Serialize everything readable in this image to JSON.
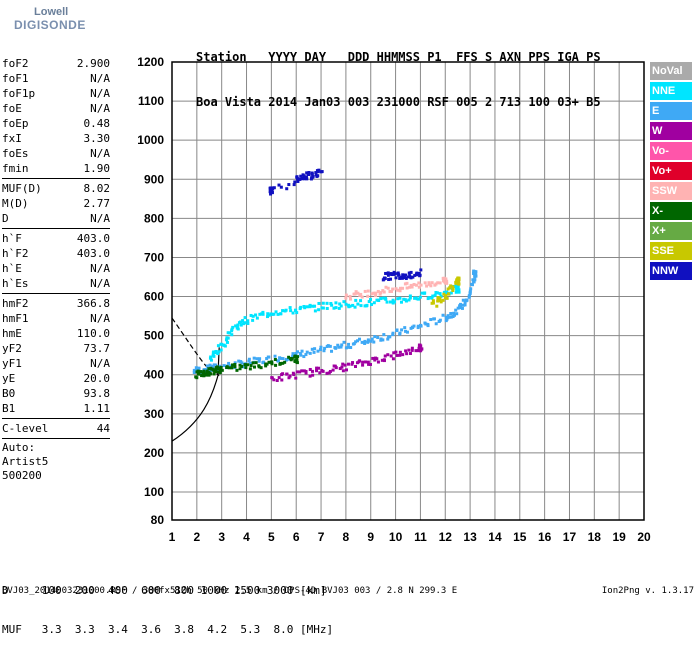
{
  "logo": {
    "line1": "Lowell",
    "line2": "DIGISONDE"
  },
  "header": {
    "row1": "Station   YYYY DAY   DDD HHMMSS P1  FFS S AXN PPS IGA PS",
    "row2": "Boa Vista 2014 Jan03 003 231000 RSF 005 2 713 100 03+ B5"
  },
  "params": {
    "group1": [
      {
        "name": "foF2",
        "value": "2.900"
      },
      {
        "name": "foF1",
        "value": "N/A"
      },
      {
        "name": "foF1p",
        "value": "N/A"
      },
      {
        "name": "foE",
        "value": "N/A"
      },
      {
        "name": "foEp",
        "value": "0.48"
      },
      {
        "name": "fxI",
        "value": "3.30"
      },
      {
        "name": "foEs",
        "value": "N/A"
      },
      {
        "name": "fmin",
        "value": "1.90"
      }
    ],
    "group2": [
      {
        "name": "MUF(D)",
        "value": "8.02"
      },
      {
        "name": "M(D)",
        "value": "2.77"
      },
      {
        "name": "D",
        "value": "N/A"
      }
    ],
    "group3": [
      {
        "name": "h`F",
        "value": "403.0"
      },
      {
        "name": "h`F2",
        "value": "403.0"
      },
      {
        "name": "h`E",
        "value": "N/A"
      },
      {
        "name": "h`Es",
        "value": "N/A"
      }
    ],
    "group4": [
      {
        "name": "hmF2",
        "value": "366.8"
      },
      {
        "name": "hmF1",
        "value": "N/A"
      },
      {
        "name": "hmE",
        "value": "110.0"
      },
      {
        "name": "yF2",
        "value": "73.7"
      },
      {
        "name": "yF1",
        "value": "N/A"
      },
      {
        "name": "yE",
        "value": "20.0"
      },
      {
        "name": "B0",
        "value": "93.8"
      },
      {
        "name": "B1",
        "value": "1.11"
      }
    ],
    "group5": [
      {
        "name": "C-level",
        "value": "44"
      }
    ],
    "auto": [
      "Auto:",
      "Artist5",
      "500200"
    ]
  },
  "legend": [
    {
      "label": "NoVal",
      "color": "#aaaaaa"
    },
    {
      "label": "NNE",
      "color": "#00e5ff"
    },
    {
      "label": "E",
      "color": "#3fa9f5"
    },
    {
      "label": "W",
      "color": "#a000a0"
    },
    {
      "label": "Vo-",
      "color": "#ff55aa"
    },
    {
      "label": "Vo+",
      "color": "#e0002a"
    },
    {
      "label": "SSW",
      "color": "#ffb3b3"
    },
    {
      "label": "X-",
      "color": "#006600"
    },
    {
      "label": "X+",
      "color": "#66aa44"
    },
    {
      "label": "SSE",
      "color": "#c8c800"
    },
    {
      "label": "NNW",
      "color": "#1010c0"
    }
  ],
  "dtable": {
    "row1": "D     100  200  400  600  800 1000 1500 3000 [km]",
    "row2": "MUF   3.3  3.3  3.4  3.6  3.8  4.2  5.3  8.0 [MHz]"
  },
  "footer": "BVJ03_2014003231000.RSF / 380fx512h 50 kHz 2.5 km / DPS-4D BVJ03 003 / 2.8 N 299.3 E",
  "version": "Ion2Png v. 1.3.17",
  "chart_data": {
    "type": "scatter",
    "x_ticks": [
      "1",
      "2",
      "3",
      "4",
      "5",
      "6",
      "7",
      "8",
      "9",
      "10",
      "11",
      "12",
      "13",
      "14",
      "15",
      "16",
      "17",
      "18",
      "19",
      "20"
    ],
    "y_ticks": [
      "80",
      "100",
      "200",
      "300",
      "400",
      "500",
      "600",
      "700",
      "800",
      "900",
      "1000",
      "1100",
      "1200"
    ],
    "xlim": [
      1,
      20
    ],
    "ylim": [
      80,
      1200
    ],
    "grid": true,
    "legend_position": "right",
    "series": [
      {
        "name": "E",
        "color": "#3fa9f5",
        "x": [
          1.9,
          2.5,
          3.0,
          4.0,
          5.0,
          6.0,
          7.0,
          8.0,
          9.0,
          10.0,
          11.0,
          12.0,
          12.5,
          13.0,
          13.2
        ],
        "y": [
          410,
          415,
          420,
          430,
          440,
          450,
          462,
          475,
          490,
          505,
          525,
          545,
          565,
          600,
          660
        ]
      },
      {
        "name": "NNE",
        "color": "#00e5ff",
        "x": [
          2.5,
          3.0,
          3.5,
          4.0,
          5.0,
          6.0,
          7.0,
          8.0,
          9.0,
          10.0,
          11.0,
          12.0,
          12.5
        ],
        "y": [
          440,
          470,
          520,
          540,
          560,
          565,
          575,
          580,
          585,
          590,
          600,
          610,
          620
        ]
      },
      {
        "name": "W",
        "color": "#a000a0",
        "x": [
          5.0,
          6.0,
          7.0,
          8.0,
          9.0,
          10.0,
          11.0
        ],
        "y": [
          390,
          400,
          410,
          420,
          435,
          450,
          470
        ]
      },
      {
        "name": "X-",
        "color": "#006600",
        "x": [
          2.0,
          2.3,
          2.6,
          3.0,
          4.0,
          5.0,
          6.0
        ],
        "y": [
          400,
          405,
          410,
          415,
          420,
          430,
          440
        ]
      },
      {
        "name": "SSW",
        "color": "#ffb3b3",
        "x": [
          8.0,
          9.0,
          10.0,
          11.0,
          12.0
        ],
        "y": [
          600,
          610,
          620,
          630,
          640
        ]
      },
      {
        "name": "NNW",
        "color": "#1010c0",
        "x": [
          9.5,
          10.0,
          10.5,
          11.0,
          6.0,
          6.5,
          7.0,
          5.0
        ],
        "y": [
          650,
          655,
          655,
          660,
          900,
          910,
          920,
          870
        ]
      },
      {
        "name": "SSE",
        "color": "#c8c800",
        "x": [
          11.5,
          12.0,
          12.5
        ],
        "y": [
          580,
          600,
          640
        ]
      }
    ]
  }
}
